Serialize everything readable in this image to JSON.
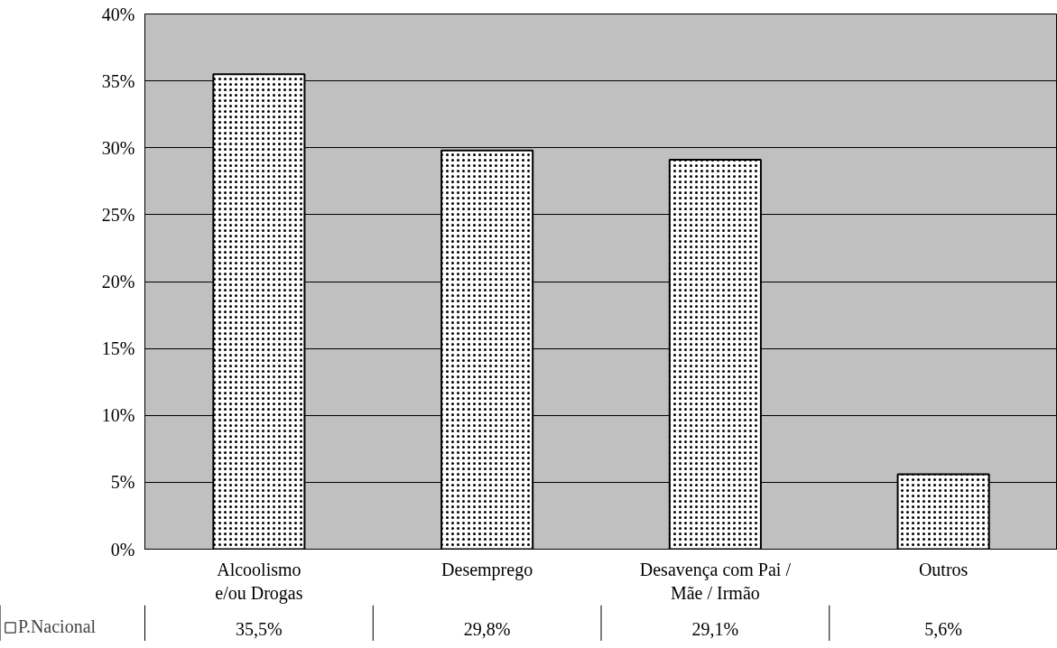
{
  "chart_data": {
    "type": "bar",
    "categories": [
      "Alcoolismo\ne/ou Drogas",
      "Desemprego",
      "Desavença com Pai /\nMãe / Irmão",
      "Outros"
    ],
    "series": [
      {
        "name": "P.Nacional",
        "color": "#ffffff",
        "values": [
          35.5,
          29.8,
          29.1,
          5.6
        ]
      }
    ],
    "value_labels": [
      "35,5%",
      "29,8%",
      "29,1%",
      "5,6%"
    ],
    "ylim": [
      0,
      40
    ],
    "yticks": [
      {
        "value": 0,
        "label": "0%"
      },
      {
        "value": 5,
        "label": "5%"
      },
      {
        "value": 10,
        "label": "10%"
      },
      {
        "value": 15,
        "label": "15%"
      },
      {
        "value": 20,
        "label": "20%"
      },
      {
        "value": 25,
        "label": "25%"
      },
      {
        "value": 30,
        "label": "30%"
      },
      {
        "value": 35,
        "label": "35%"
      },
      {
        "value": 40,
        "label": "40%"
      }
    ],
    "grid": "y",
    "legend": "bottom left"
  }
}
